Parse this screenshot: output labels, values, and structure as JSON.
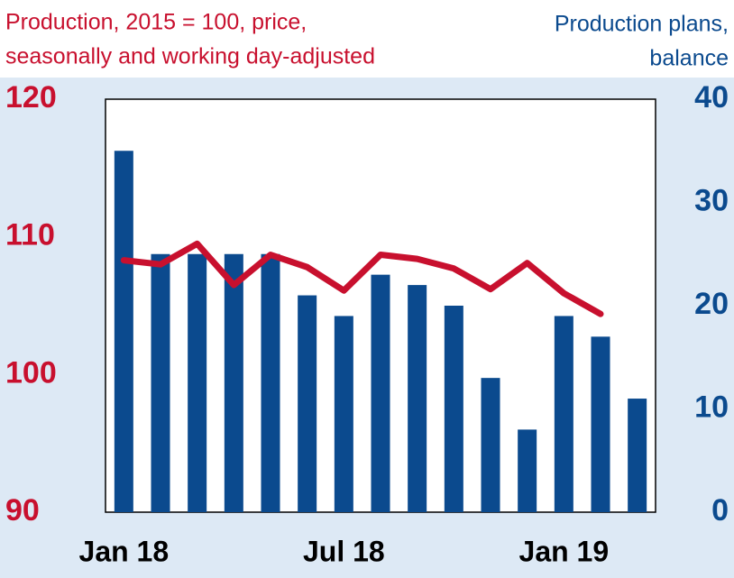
{
  "chart_data": {
    "type": "bar_line",
    "y_label": [
      "Production, 2015 = 100, price,",
      "seasonally and working day-adjusted"
    ],
    "y2_label": [
      "Production plans,",
      "balance"
    ],
    "categories": [
      "Jan 18",
      null,
      null,
      null,
      null,
      null,
      "Jul 18",
      null,
      null,
      null,
      null,
      null,
      "Jan 19",
      null,
      null
    ],
    "series": [
      {
        "name": "Production plans",
        "type": "bar",
        "axis": "y2",
        "color": "#0b4a8e",
        "values": [
          35,
          25,
          25,
          25,
          25,
          21,
          19,
          23,
          22,
          20,
          13,
          8,
          19,
          17,
          11
        ]
      },
      {
        "name": "Production",
        "type": "line",
        "axis": "y",
        "color": "#c8102e",
        "values": [
          108.3,
          108.0,
          109.5,
          106.5,
          108.7,
          107.8,
          106.1,
          108.7,
          108.4,
          107.7,
          106.2,
          108.1,
          105.9,
          104.4,
          null
        ]
      }
    ],
    "ylim": [
      90,
      120
    ],
    "yticks": [
      90,
      100,
      110,
      120
    ],
    "y2lim": [
      0,
      40
    ],
    "y2ticks": [
      0,
      10,
      20,
      30,
      40
    ]
  }
}
